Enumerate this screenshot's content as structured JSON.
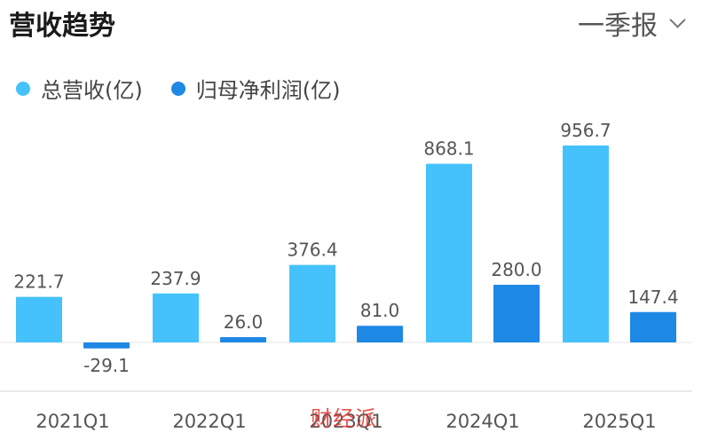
{
  "header": {
    "title": "营收趋势",
    "period": "一季报"
  },
  "watermark": "财经派",
  "colors": {
    "revenue": "#45c2fb",
    "profit": "#1e88e5",
    "axis": "#dcdcdc",
    "label": "#555555"
  },
  "chart_data": {
    "type": "bar",
    "categories": [
      "2021Q1",
      "2022Q1",
      "2023Q1",
      "2024Q1",
      "2025Q1"
    ],
    "series": [
      {
        "name": "总营收(亿)",
        "values": [
          221.7,
          237.9,
          376.4,
          868.1,
          956.7
        ]
      },
      {
        "name": "归母净利润(亿)",
        "values": [
          -29.1,
          26.0,
          81.0,
          280.0,
          147.4
        ]
      }
    ],
    "value_labels": [
      [
        "221.7",
        "237.9",
        "376.4",
        "868.1",
        "956.7"
      ],
      [
        "-29.1",
        "26.0",
        "81.0",
        "280.0",
        "147.4"
      ]
    ],
    "title": "营收趋势",
    "grid": false,
    "legend": "top-left"
  }
}
